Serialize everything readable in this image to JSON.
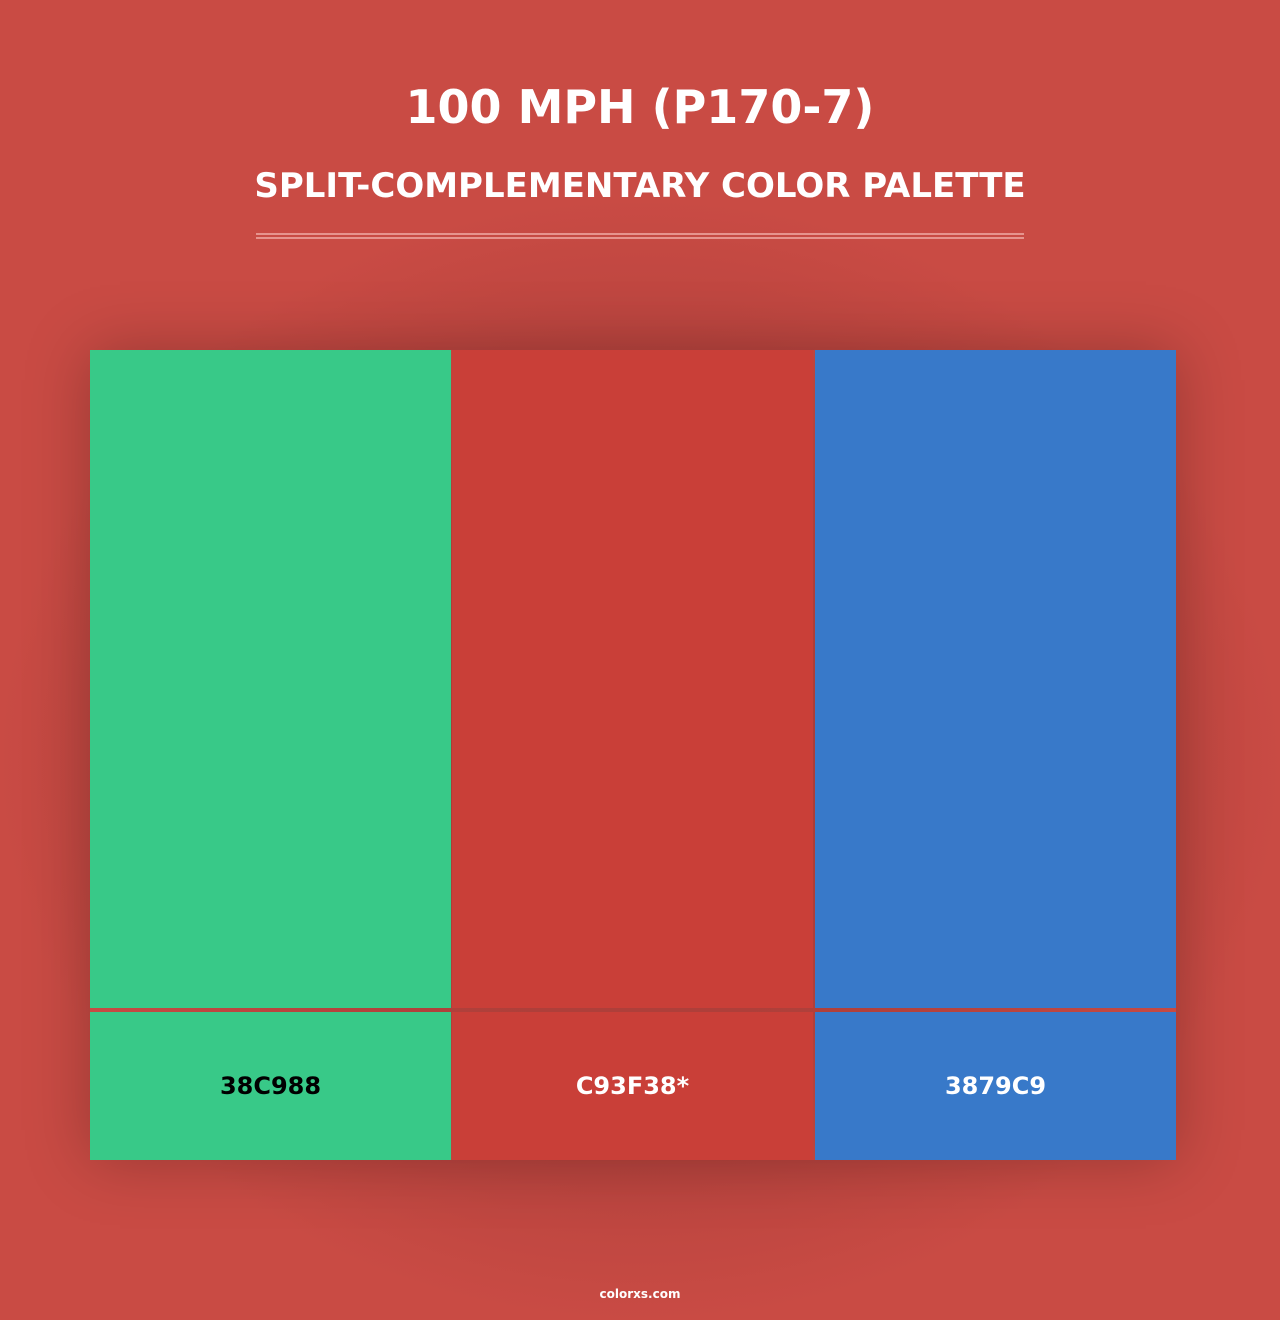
{
  "header": {
    "title": "100 MPH (P170-7)",
    "subtitle": "SPLIT-COMPLEMENTARY COLOR PALETTE"
  },
  "swatches": [
    {
      "hex": "#38C988",
      "label": "38C988",
      "text_color": "#000000"
    },
    {
      "hex": "#C93F38",
      "label": "C93F38*",
      "text_color": "#ffffff"
    },
    {
      "hex": "#3879C9",
      "label": "3879C9",
      "text_color": "#ffffff"
    }
  ],
  "footer": {
    "site": "colorxs.com"
  }
}
